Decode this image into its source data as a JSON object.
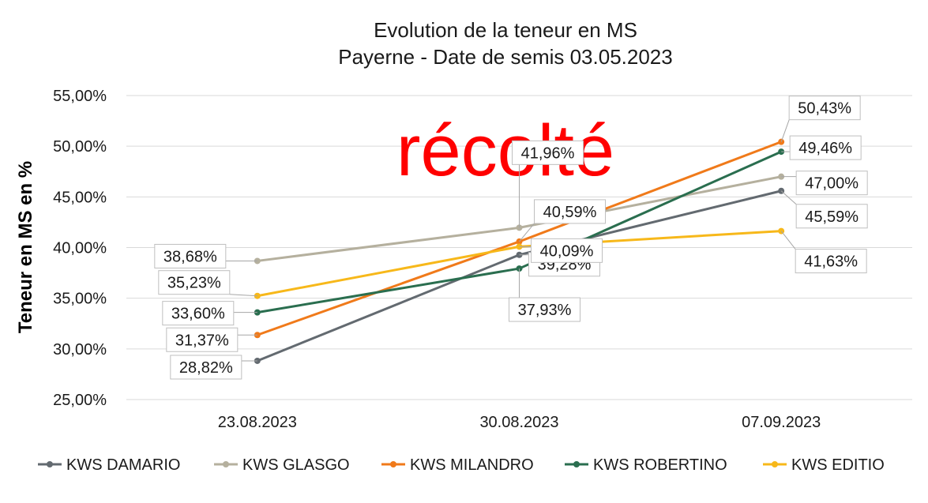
{
  "chart_data": {
    "type": "line",
    "title": "Evolution de la teneur en MS",
    "subtitle": "Payerne - Date de semis 03.05.2023",
    "ylabel": "Teneur en MS en %",
    "xlabel": "",
    "categories": [
      "23.08.2023",
      "30.08.2023",
      "07.09.2023"
    ],
    "ylim": [
      25,
      55
    ],
    "y_ticks": [
      "25,00%",
      "30,00%",
      "35,00%",
      "40,00%",
      "45,00%",
      "50,00%",
      "55,00%"
    ],
    "grid": true,
    "legend_position": "bottom",
    "annotation": "récolté",
    "annotation_color": "#ff0000",
    "series": [
      {
        "name": "KWS DAMARIO",
        "color": "#636a70",
        "values": [
          28.82,
          39.28,
          45.59
        ],
        "labels": [
          "28,82%",
          "39,28%",
          "45,59%"
        ]
      },
      {
        "name": "KWS GLASGO",
        "color": "#b5b09e",
        "values": [
          38.68,
          41.96,
          47.0
        ],
        "labels": [
          "38,68%",
          "41,96%",
          "47,00%"
        ]
      },
      {
        "name": "KWS MILANDRO",
        "color": "#f07a1a",
        "values": [
          31.37,
          40.59,
          50.43
        ],
        "labels": [
          "31,37%",
          "40,59%",
          "50,43%"
        ]
      },
      {
        "name": "KWS ROBERTINO",
        "color": "#2a6e4f",
        "values": [
          33.6,
          37.93,
          49.46
        ],
        "labels": [
          "33,60%",
          "37,93%",
          "49,46%"
        ]
      },
      {
        "name": "KWS EDITIO",
        "color": "#f7b81a",
        "values": [
          35.23,
          40.09,
          41.63
        ],
        "labels": [
          "35,23%",
          "40,09%",
          "41,63%"
        ]
      }
    ]
  }
}
